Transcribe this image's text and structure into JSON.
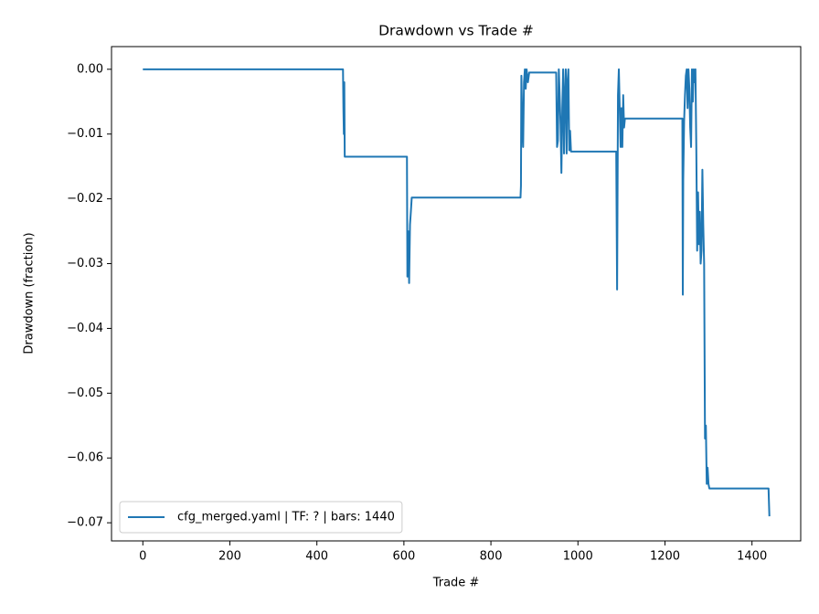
{
  "chart_data": {
    "type": "line",
    "title": "Drawdown vs Trade #",
    "xlabel": "Trade #",
    "ylabel": "Drawdown (fraction)",
    "xlim": [
      -72,
      1512
    ],
    "ylim": [
      -0.0728,
      0.0035
    ],
    "xticks": [
      0,
      200,
      400,
      600,
      800,
      1000,
      1200,
      1400
    ],
    "yticks": [
      {
        "value": 0,
        "label": "0.00"
      },
      {
        "value": -0.01,
        "label": "−0.01"
      },
      {
        "value": -0.02,
        "label": "−0.02"
      },
      {
        "value": -0.03,
        "label": "−0.03"
      },
      {
        "value": -0.04,
        "label": "−0.04"
      },
      {
        "value": -0.05,
        "label": "−0.05"
      },
      {
        "value": -0.06,
        "label": "−0.06"
      },
      {
        "value": -0.07,
        "label": "−0.07"
      }
    ],
    "legend": "lower left",
    "series": [
      {
        "name": "cfg_merged.yaml | TF: ? | bars: 1440",
        "color": "#1f77b4",
        "x": [
          0,
          460,
          461,
          462,
          463,
          464,
          607,
          608,
          610,
          612,
          614,
          616,
          618,
          868,
          869,
          870,
          872,
          874,
          876,
          878,
          880,
          882,
          885,
          888,
          950,
          952,
          954,
          956,
          958,
          960,
          962,
          964,
          966,
          968,
          970,
          972,
          974,
          976,
          978,
          980,
          982,
          984,
          1088,
          1090,
          1092,
          1094,
          1096,
          1098,
          1100,
          1102,
          1104,
          1106,
          1108,
          1240,
          1241,
          1242,
          1244,
          1246,
          1248,
          1250,
          1252,
          1254,
          1256,
          1258,
          1260,
          1262,
          1264,
          1266,
          1268,
          1270,
          1272,
          1274,
          1276,
          1278,
          1280,
          1282,
          1284,
          1286,
          1288,
          1290,
          1292,
          1294,
          1296,
          1298,
          1300,
          1302,
          1438,
          1440
        ],
        "values": [
          0,
          0,
          -0.006,
          -0.01,
          -0.002,
          -0.0135,
          -0.0135,
          -0.032,
          -0.025,
          -0.033,
          -0.024,
          -0.022,
          -0.0198,
          -0.0198,
          -0.018,
          -0.001,
          -0.008,
          -0.012,
          -0.002,
          0,
          -0.003,
          0,
          -0.002,
          -0.0005,
          -0.0005,
          -0.012,
          -0.011,
          0,
          -0.004,
          -0.0085,
          -0.016,
          -0.006,
          0,
          -0.013,
          -0.004,
          0,
          -0.013,
          -0.002,
          0,
          -0.0125,
          -0.0095,
          -0.0127,
          -0.0127,
          -0.034,
          -0.004,
          0,
          -0.006,
          -0.012,
          -0.006,
          -0.012,
          -0.004,
          -0.009,
          -0.0076,
          -0.0076,
          -0.0348,
          -0.017,
          -0.008,
          -0.004,
          -0.001,
          0,
          -0.006,
          0,
          -0.003,
          -0.009,
          -0.012,
          0,
          -0.005,
          0,
          -0.002,
          0,
          -0.012,
          -0.028,
          -0.019,
          -0.027,
          -0.022,
          -0.03,
          -0.028,
          -0.0155,
          -0.024,
          -0.03,
          -0.057,
          -0.055,
          -0.064,
          -0.0615,
          -0.064,
          -0.0647,
          -0.0647,
          -0.069
        ]
      }
    ]
  }
}
